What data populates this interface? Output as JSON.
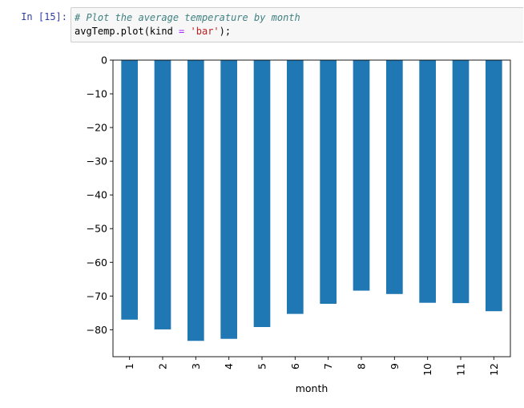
{
  "cell": {
    "prompt": "In [15]:",
    "code_lines": [
      [
        {
          "t": "comment",
          "v": "# Plot the average temperature by month"
        }
      ],
      [
        {
          "t": "plain",
          "v": "avgTemp.plot(kind "
        },
        {
          "t": "op",
          "v": "="
        },
        {
          "t": "plain",
          "v": " "
        },
        {
          "t": "str",
          "v": "'bar'"
        },
        {
          "t": "plain",
          "v": ");"
        }
      ]
    ]
  },
  "chart_data": {
    "type": "bar",
    "categories": [
      "1",
      "2",
      "3",
      "4",
      "5",
      "6",
      "7",
      "8",
      "9",
      "10",
      "11",
      "12"
    ],
    "values": [
      -77.0,
      -79.9,
      -83.3,
      -82.7,
      -79.2,
      -75.3,
      -72.3,
      -68.4,
      -69.4,
      -72.0,
      -72.1,
      -74.5
    ],
    "xlabel": "month",
    "ylabel": "",
    "ylim": [
      -88,
      0
    ],
    "yticks": [
      0,
      -10,
      -20,
      -30,
      -40,
      -50,
      -60,
      -70,
      -80
    ],
    "ytick_labels": [
      "0",
      "−10",
      "−20",
      "−30",
      "−40",
      "−50",
      "−60",
      "−70",
      "−80"
    ],
    "bar_color": "#1f77b4",
    "grid": false,
    "legend": "none"
  }
}
